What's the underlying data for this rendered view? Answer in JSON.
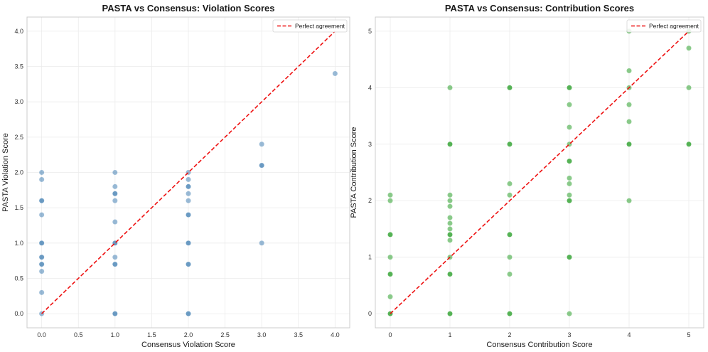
{
  "chart_data": [
    {
      "type": "scatter",
      "title": "PASTA vs Consensus: Violation Scores",
      "xlabel": "Consensus Violation Score",
      "ylabel": "PASTA Violation Score",
      "xlim": [
        -0.2,
        4.2
      ],
      "ylim": [
        -0.2,
        4.2
      ],
      "xticks": [
        0.0,
        0.5,
        1.0,
        1.5,
        2.0,
        2.5,
        3.0,
        3.5,
        4.0
      ],
      "xtick_labels": [
        "0.0",
        "0.5",
        "1.0",
        "1.5",
        "2.0",
        "2.5",
        "3.0",
        "3.5",
        "4.0"
      ],
      "yticks": [
        0.0,
        0.5,
        1.0,
        1.5,
        2.0,
        2.5,
        3.0,
        3.5,
        4.0
      ],
      "ytick_labels": [
        "0.0",
        "0.5",
        "1.0",
        "1.5",
        "2.0",
        "2.5",
        "3.0",
        "3.5",
        "4.0"
      ],
      "grid": true,
      "point_color": "#4682b4",
      "points": [
        [
          0,
          0
        ],
        [
          0,
          0.3
        ],
        [
          0,
          0.6
        ],
        [
          0,
          0.7
        ],
        [
          0,
          0.7
        ],
        [
          0,
          0.8
        ],
        [
          0,
          0.8
        ],
        [
          0,
          1.0
        ],
        [
          0,
          1.0
        ],
        [
          0,
          1.4
        ],
        [
          0,
          1.6
        ],
        [
          0,
          1.6
        ],
        [
          0,
          1.9
        ],
        [
          0,
          2.0
        ],
        [
          1,
          0
        ],
        [
          1,
          0
        ],
        [
          1,
          0.7
        ],
        [
          1,
          0.7
        ],
        [
          1,
          0.8
        ],
        [
          1,
          1.0
        ],
        [
          1,
          1.0
        ],
        [
          1,
          1.3
        ],
        [
          1,
          1.6
        ],
        [
          1,
          1.7
        ],
        [
          1,
          1.7
        ],
        [
          1,
          1.8
        ],
        [
          1,
          2.0
        ],
        [
          2,
          0
        ],
        [
          2,
          0
        ],
        [
          2,
          0.7
        ],
        [
          2,
          0.7
        ],
        [
          2,
          1.0
        ],
        [
          2,
          1.0
        ],
        [
          2,
          1.4
        ],
        [
          2,
          1.4
        ],
        [
          2,
          1.6
        ],
        [
          2,
          1.7
        ],
        [
          2,
          1.8
        ],
        [
          2,
          1.8
        ],
        [
          2,
          1.9
        ],
        [
          2,
          2.0
        ],
        [
          3,
          1.0
        ],
        [
          3,
          2.1
        ],
        [
          3,
          2.1
        ],
        [
          3,
          2.4
        ],
        [
          4,
          3.4
        ]
      ],
      "reference_line": {
        "label": "Perfect agreement",
        "from": [
          0,
          0
        ],
        "to": [
          4,
          4
        ],
        "color": "#ee1111",
        "style": "dashed"
      },
      "legend": {
        "position": "top-right",
        "entries": [
          "Perfect agreement"
        ]
      }
    },
    {
      "type": "scatter",
      "title": "PASTA vs Consensus: Contribution Scores",
      "xlabel": "Consensus Contribution Score",
      "ylabel": "PASTA Contribution Score",
      "xlim": [
        -0.25,
        5.25
      ],
      "ylim": [
        -0.25,
        5.25
      ],
      "xticks": [
        0,
        1,
        2,
        3,
        4,
        5
      ],
      "xtick_labels": [
        "0",
        "1",
        "2",
        "3",
        "4",
        "5"
      ],
      "yticks": [
        0,
        1,
        2,
        3,
        4,
        5
      ],
      "ytick_labels": [
        "0",
        "1",
        "2",
        "3",
        "4",
        "5"
      ],
      "grid": true,
      "point_color": "#2ca02c",
      "points": [
        [
          0,
          0
        ],
        [
          0,
          0
        ],
        [
          0,
          0.3
        ],
        [
          0,
          0.7
        ],
        [
          0,
          0.7
        ],
        [
          0,
          1.0
        ],
        [
          0,
          1.4
        ],
        [
          0,
          1.4
        ],
        [
          0,
          2.0
        ],
        [
          0,
          2.1
        ],
        [
          1,
          0
        ],
        [
          1,
          0
        ],
        [
          1,
          0.7
        ],
        [
          1,
          0.7
        ],
        [
          1,
          1.0
        ],
        [
          1,
          1.3
        ],
        [
          1,
          1.4
        ],
        [
          1,
          1.4
        ],
        [
          1,
          1.5
        ],
        [
          1,
          1.6
        ],
        [
          1,
          1.7
        ],
        [
          1,
          1.9
        ],
        [
          1,
          2.0
        ],
        [
          1,
          2.1
        ],
        [
          1,
          3.0
        ],
        [
          1,
          3.0
        ],
        [
          1,
          4.0
        ],
        [
          2,
          0
        ],
        [
          2,
          0
        ],
        [
          2,
          0.7
        ],
        [
          2,
          1.0
        ],
        [
          2,
          1.4
        ],
        [
          2,
          1.4
        ],
        [
          2,
          2.1
        ],
        [
          2,
          2.3
        ],
        [
          2,
          3.0
        ],
        [
          2,
          3.0
        ],
        [
          2,
          4.0
        ],
        [
          2,
          4.0
        ],
        [
          3,
          0
        ],
        [
          3,
          1.0
        ],
        [
          3,
          1.0
        ],
        [
          3,
          2.0
        ],
        [
          3,
          2.0
        ],
        [
          3,
          2.1
        ],
        [
          3,
          2.3
        ],
        [
          3,
          2.4
        ],
        [
          3,
          2.7
        ],
        [
          3,
          2.7
        ],
        [
          3,
          3.0
        ],
        [
          3,
          3.3
        ],
        [
          3,
          3.7
        ],
        [
          3,
          4.0
        ],
        [
          3,
          4.0
        ],
        [
          4,
          2.0
        ],
        [
          4,
          3.0
        ],
        [
          4,
          3.0
        ],
        [
          4,
          3.4
        ],
        [
          4,
          3.7
        ],
        [
          4,
          4.0
        ],
        [
          4,
          4.3
        ],
        [
          4,
          5.0
        ],
        [
          5,
          3.0
        ],
        [
          5,
          3.0
        ],
        [
          5,
          4.0
        ],
        [
          5,
          4.7
        ],
        [
          5,
          5.0
        ]
      ],
      "reference_line": {
        "label": "Perfect agreement",
        "from": [
          0,
          0
        ],
        "to": [
          5,
          5
        ],
        "color": "#ee1111",
        "style": "dashed"
      },
      "legend": {
        "position": "top-right",
        "entries": [
          "Perfect agreement"
        ]
      }
    }
  ]
}
